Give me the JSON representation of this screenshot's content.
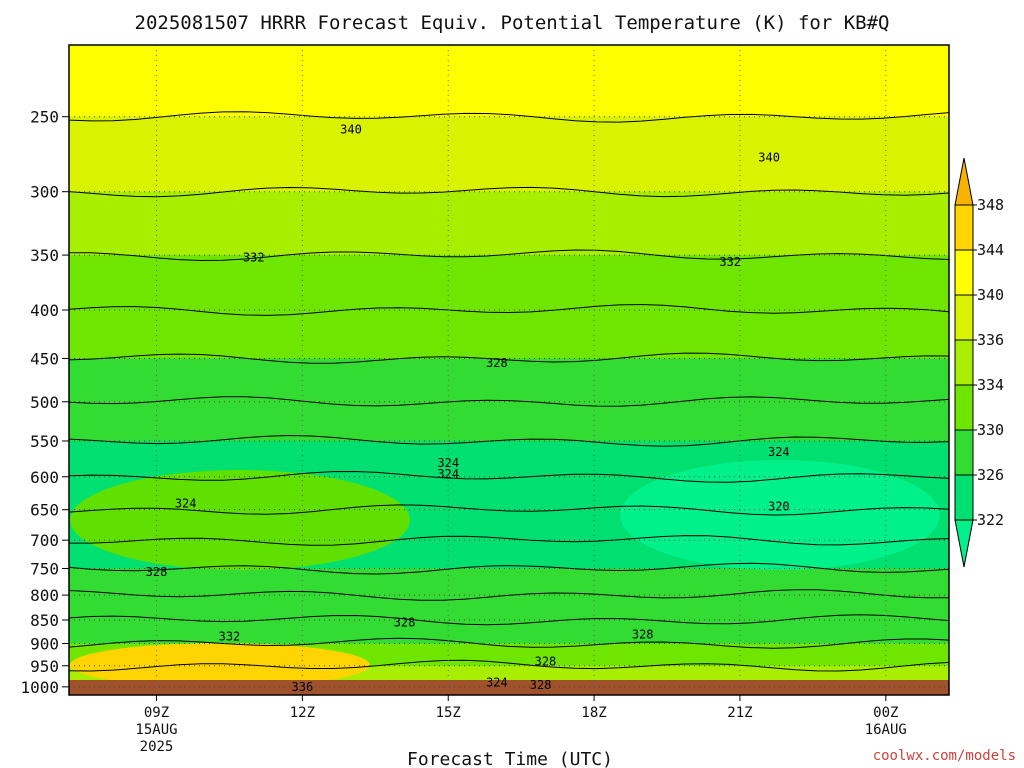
{
  "chart_data": {
    "type": "heatmap",
    "title": "2025081507 HRRR Forecast Equiv. Potential Temperature (K) for KB#Q",
    "xlabel": "Forecast Time (UTC)",
    "ylabel": "",
    "credit": "coolwx.com/models",
    "y_axis": {
      "scale": "log",
      "reversed": true,
      "range_hPa": [
        1020,
        210
      ],
      "ticks": [
        "250",
        "300",
        "350",
        "400",
        "450",
        "500",
        "550",
        "600",
        "650",
        "700",
        "750",
        "800",
        "850",
        "900",
        "950",
        "1000"
      ]
    },
    "x_axis": {
      "range_hours_from_15Z": [
        -7.8,
        10.3
      ],
      "ticks": [
        {
          "hour": -6,
          "lines": [
            "09Z",
            "15AUG",
            "2025"
          ]
        },
        {
          "hour": -3,
          "lines": [
            "12Z"
          ]
        },
        {
          "hour": 0,
          "lines": [
            "15Z"
          ]
        },
        {
          "hour": 3,
          "lines": [
            "18Z"
          ]
        },
        {
          "hour": 6,
          "lines": [
            "21Z"
          ]
        },
        {
          "hour": 9,
          "lines": [
            "00Z",
            "16AUG"
          ]
        }
      ]
    },
    "colorbar": {
      "labels": [
        "348",
        "344",
        "340",
        "336",
        "334",
        "330",
        "326",
        "322"
      ],
      "colors": [
        "#f7b300",
        "#ffd400",
        "#ffff00",
        "#d9f200",
        "#a8ee00",
        "#6fe600",
        "#33dc33",
        "#00e070",
        "#00f08a"
      ]
    },
    "contour_labels": [
      "340",
      "340",
      "332",
      "332",
      "328",
      "324",
      "324",
      "324",
      "324",
      "320",
      "328",
      "328",
      "332",
      "328",
      "328",
      "336",
      "324",
      "328"
    ],
    "profile": [
      {
        "p": 1000,
        "theta_e": 337
      },
      {
        "p": 950,
        "theta_e": 334
      },
      {
        "p": 900,
        "theta_e": 331
      },
      {
        "p": 850,
        "theta_e": 328
      },
      {
        "p": 800,
        "theta_e": 327
      },
      {
        "p": 750,
        "theta_e": 326
      },
      {
        "p": 700,
        "theta_e": 325
      },
      {
        "p": 650,
        "theta_e": 324
      },
      {
        "p": 600,
        "theta_e": 324
      },
      {
        "p": 550,
        "theta_e": 325
      },
      {
        "p": 500,
        "theta_e": 327
      },
      {
        "p": 450,
        "theta_e": 329
      },
      {
        "p": 400,
        "theta_e": 331
      },
      {
        "p": 350,
        "theta_e": 333
      },
      {
        "p": 300,
        "theta_e": 337
      },
      {
        "p": 250,
        "theta_e": 340
      },
      {
        "p": 210,
        "theta_e": 346
      }
    ]
  }
}
